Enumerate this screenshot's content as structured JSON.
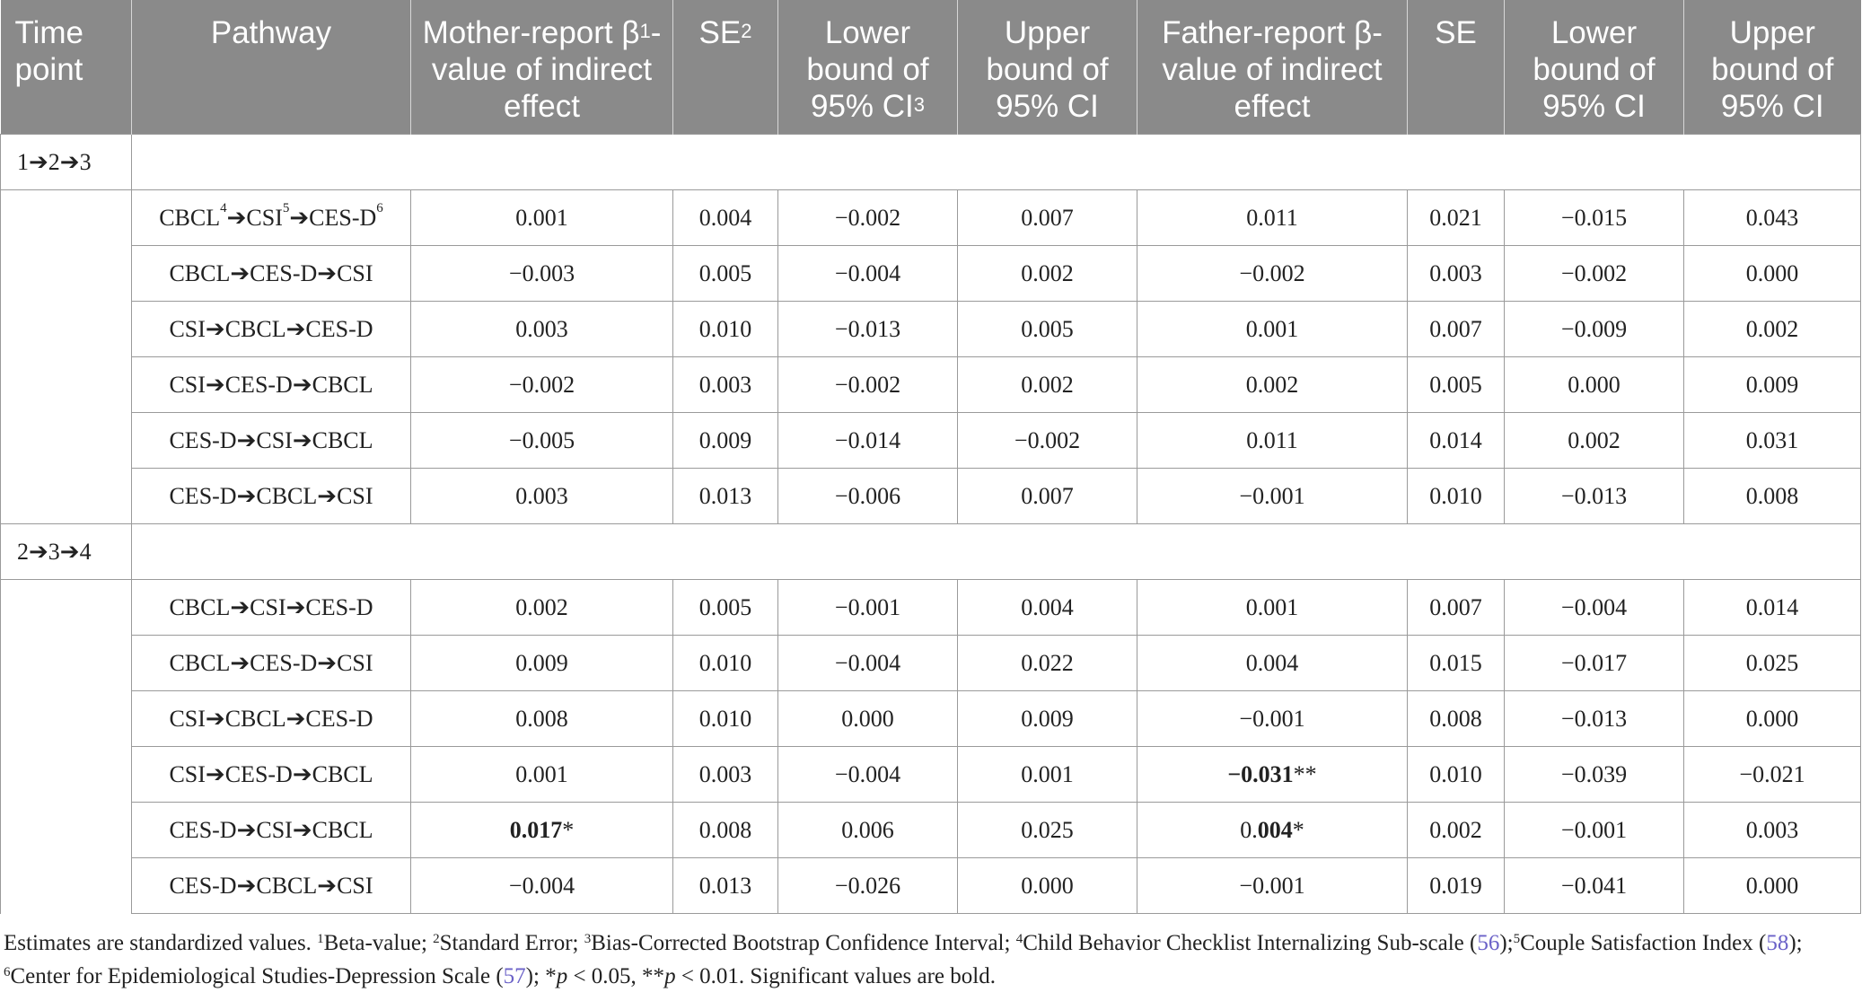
{
  "headers": {
    "time_point": "Time point",
    "pathway": "Pathway",
    "mother_beta": "Mother-report β1-value of indirect effect",
    "se_mother": "SE2",
    "lower_mother": "Lower bound of 95% CI3",
    "upper_mother": "Upper bound of 95% CI",
    "father_beta": "Father-report β-value of indirect effect",
    "se_father": "SE",
    "lower_father": "Lower bound of 95% CI",
    "upper_father": "Upper bound of 95% CI"
  },
  "groups": [
    {
      "time_point": "1➔2➔3",
      "rows": [
        {
          "pathway": "CBCL4➔CSI5➔CES-D6",
          "mother_beta": "0.001",
          "se_mother": "0.004",
          "lower_mother": "−0.002",
          "upper_mother": "0.007",
          "father_beta": "0.011",
          "se_father": "0.021",
          "lower_father": "−0.015",
          "upper_father": "0.043"
        },
        {
          "pathway": "CBCL➔CES-D➔CSI",
          "mother_beta": "−0.003",
          "se_mother": "0.005",
          "lower_mother": "−0.004",
          "upper_mother": "0.002",
          "father_beta": "−0.002",
          "se_father": "0.003",
          "lower_father": "−0.002",
          "upper_father": "0.000"
        },
        {
          "pathway": "CSI➔CBCL➔CES-D",
          "mother_beta": "0.003",
          "se_mother": "0.010",
          "lower_mother": "−0.013",
          "upper_mother": "0.005",
          "father_beta": "0.001",
          "se_father": "0.007",
          "lower_father": "−0.009",
          "upper_father": "0.002"
        },
        {
          "pathway": "CSI➔CES-D➔CBCL",
          "mother_beta": "−0.002",
          "se_mother": "0.003",
          "lower_mother": "−0.002",
          "upper_mother": "0.002",
          "father_beta": "0.002",
          "se_father": "0.005",
          "lower_father": "0.000",
          "upper_father": "0.009"
        },
        {
          "pathway": "CES-D➔CSI➔CBCL",
          "mother_beta": "−0.005",
          "se_mother": "0.009",
          "lower_mother": "−0.014",
          "upper_mother": "−0.002",
          "father_beta": "0.011",
          "se_father": "0.014",
          "lower_father": "0.002",
          "upper_father": "0.031"
        },
        {
          "pathway": "CES-D➔CBCL➔CSI",
          "mother_beta": "0.003",
          "se_mother": "0.013",
          "lower_mother": "−0.006",
          "upper_mother": "0.007",
          "father_beta": "−0.001",
          "se_father": "0.010",
          "lower_father": "−0.013",
          "upper_father": "0.008"
        }
      ]
    },
    {
      "time_point": "2➔3➔4",
      "rows": [
        {
          "pathway": "CBCL➔CSI➔CES-D",
          "mother_beta": "0.002",
          "se_mother": "0.005",
          "lower_mother": "−0.001",
          "upper_mother": "0.004",
          "father_beta": "0.001",
          "se_father": "0.007",
          "lower_father": "−0.004",
          "upper_father": "0.014"
        },
        {
          "pathway": "CBCL➔CES-D➔CSI",
          "mother_beta": "0.009",
          "se_mother": "0.010",
          "lower_mother": "−0.004",
          "upper_mother": "0.022",
          "father_beta": "0.004",
          "se_father": "0.015",
          "lower_father": "−0.017",
          "upper_father": "0.025"
        },
        {
          "pathway": "CSI➔CBCL➔CES-D",
          "mother_beta": "0.008",
          "se_mother": "0.010",
          "lower_mother": "0.000",
          "upper_mother": "0.009",
          "father_beta": "−0.001",
          "se_father": "0.008",
          "lower_father": "−0.013",
          "upper_father": "0.000"
        },
        {
          "pathway": "CSI➔CES-D➔CBCL",
          "mother_beta": "0.001",
          "se_mother": "0.003",
          "lower_mother": "−0.004",
          "upper_mother": "0.001",
          "father_beta": "−0.031**",
          "se_father": "0.010",
          "lower_father": "−0.039",
          "upper_father": "−0.021"
        },
        {
          "pathway": "CES-D➔CSI➔CBCL",
          "mother_beta": "0.017*",
          "se_mother": "0.008",
          "lower_mother": "0.006",
          "upper_mother": "0.025",
          "father_beta": "0.004*",
          "se_father": "0.002",
          "lower_father": "−0.001",
          "upper_father": "0.003"
        },
        {
          "pathway": "CES-D➔CBCL➔CSI",
          "mother_beta": "−0.004",
          "se_mother": "0.013",
          "lower_mother": "−0.026",
          "upper_mother": "0.000",
          "father_beta": "−0.001",
          "se_father": "0.019",
          "lower_father": "−0.041",
          "upper_father": "0.000"
        }
      ]
    }
  ],
  "significant": {
    "mother_beta": "0.017",
    "mother_mark": "*",
    "father_beta_neg": "−0.031",
    "father_mark_neg": "**",
    "father_beta_pos_prefix": "0.",
    "father_beta_pos_bold": "004",
    "father_mark_pos": "*"
  },
  "footnote": {
    "text_1": "Estimates are standardized values. ",
    "sup1": "1",
    "text_2": "Beta-value; ",
    "sup2": "2",
    "text_3": "Standard Error; ",
    "sup3": "3",
    "text_4": "Bias-Corrected Bootstrap Confidence Interval; ",
    "sup4": "4",
    "text_5": "Child Behavior Checklist Internalizing Sub-scale (",
    "ref56": "56",
    "text_6": ");",
    "sup5": "5",
    "text_7": "Couple Satisfaction Index (",
    "ref58": "58",
    "text_8": "); ",
    "sup6": "6",
    "text_9": "Center for Epidemiological Studies-Depression Scale (",
    "ref57": "57",
    "text_10": "); *",
    "p1": "p",
    "text_11": " < 0.05, **",
    "p2": "p",
    "text_12": " < 0.01. Significant values are bold."
  }
}
